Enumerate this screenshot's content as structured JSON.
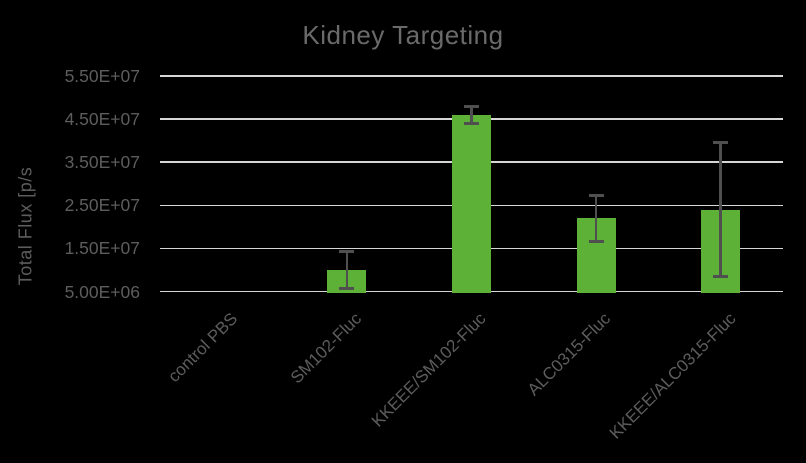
{
  "colors": {
    "background": "#000000",
    "bar": "#5cb136",
    "gridline": "#d6d6d6",
    "tick_text": "#5d5d5d",
    "title_text": "#6a6a6a",
    "error_bar": "#4f4f4f"
  },
  "chart_data": {
    "type": "bar",
    "title": "Kidney Targeting",
    "ylabel": "Total Flux [p/s",
    "xlabel": "",
    "categories": [
      "control PBS",
      "SM102-Fluc",
      "KKEEE/SM102-Fluc",
      "ALC0315-Fluc",
      "KKEEE/ALC0315-Fluc"
    ],
    "values": [
      0,
      10000000,
      46000000,
      22000000,
      24000000
    ],
    "error_plus_minus": [
      0,
      4300000,
      2000000,
      5300000,
      15500000
    ],
    "ylim": [
      5000000,
      55000000
    ],
    "yticks": [
      {
        "value": 5000000,
        "label": "5.00E+06"
      },
      {
        "value": 15000000,
        "label": "1.50E+07"
      },
      {
        "value": 25000000,
        "label": "2.50E+07"
      },
      {
        "value": 35000000,
        "label": "3.50E+07"
      },
      {
        "value": 45000000,
        "label": "4.50E+07"
      },
      {
        "value": 55000000,
        "label": "5.50E+07"
      }
    ],
    "grid": true,
    "legend": false
  }
}
